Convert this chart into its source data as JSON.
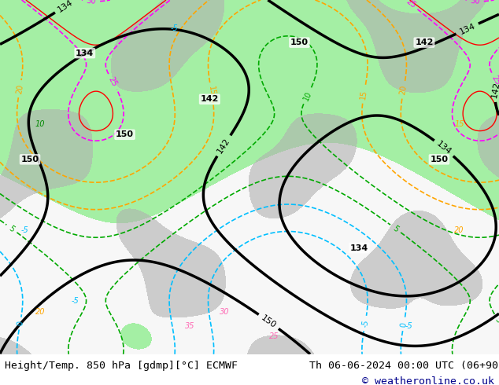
{
  "title_left": "Height/Temp. 850 hPa [gdmp][°C] ECMWF",
  "title_right": "Th 06-06-2024 00:00 UTC (06+90)",
  "copyright": "© weatheronline.co.uk",
  "bg_color": "#ffffff",
  "fig_width": 6.34,
  "fig_height": 4.9,
  "dpi": 100,
  "footer_fontsize": 9.5,
  "copyright_fontsize": 9.5,
  "copyright_color": "#00008B",
  "footer_color": "#000000",
  "map_bg_color": "#e8e8e8",
  "green_fill": "#90EE90",
  "contour_black": "#000000",
  "contour_cyan": "#00BFFF",
  "contour_orange": "#FFA500",
  "contour_pink": "#FF69B4",
  "contour_red": "#FF0000",
  "contour_gray": "#808080"
}
